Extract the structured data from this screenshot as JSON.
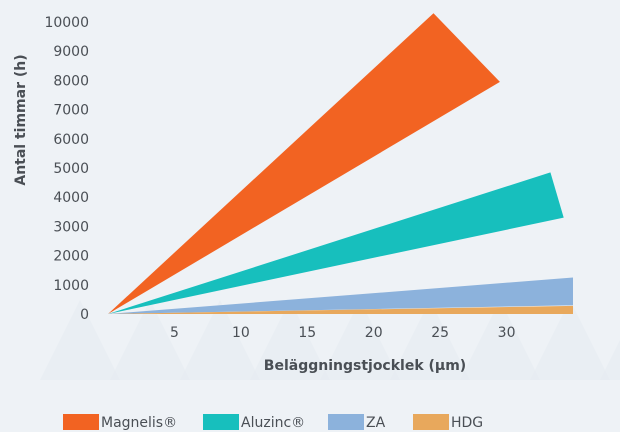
{
  "chart_data": {
    "type": "area",
    "xlabel": "Beläggningstjocklek (µm)",
    "ylabel": "Antal timmar (h)",
    "xlim": [
      0,
      35
    ],
    "ylim": [
      0,
      10000
    ],
    "x_ticks": [
      "5",
      "10",
      "15",
      "20",
      "25",
      "30"
    ],
    "y_ticks": [
      "0",
      "1000",
      "2000",
      "3000",
      "4000",
      "5000",
      "6000",
      "7000",
      "8000",
      "9000",
      "10000"
    ],
    "legend_position": "bottom",
    "series": [
      {
        "name": "Magnelis®",
        "color": "#f26322",
        "origin": [
          0,
          0
        ],
        "upper_end": [
          24.5,
          10300
        ],
        "lower_end": [
          29.5,
          7950
        ]
      },
      {
        "name": "Aluzinc®",
        "color": "#17bfbd",
        "origin": [
          0,
          0
        ],
        "upper_end": [
          33.3,
          4850
        ],
        "lower_end": [
          34.3,
          3300
        ]
      },
      {
        "name": "ZA",
        "color": "#8cb2dc",
        "origin": [
          0,
          0
        ],
        "upper_end": [
          35,
          1250
        ],
        "lower_end": [
          35,
          300
        ]
      },
      {
        "name": "HDG",
        "color": "#e8a85c",
        "origin": [
          0,
          0
        ],
        "upper_end": [
          35,
          280
        ],
        "lower_end": [
          35,
          0
        ]
      }
    ]
  }
}
